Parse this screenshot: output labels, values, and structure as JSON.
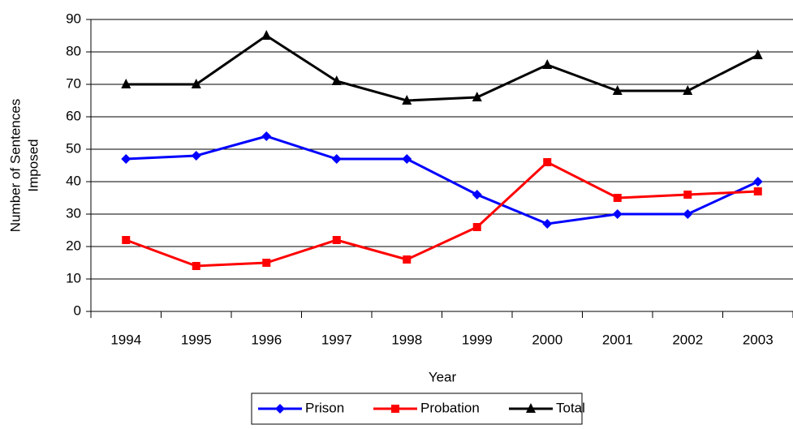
{
  "chart_data": {
    "type": "line",
    "xlabel": "Year",
    "ylabel_lines": [
      "Number of Sentences",
      "Imposed"
    ],
    "categories": [
      "1994",
      "1995",
      "1996",
      "1997",
      "1998",
      "1999",
      "2000",
      "2001",
      "2002",
      "2003"
    ],
    "series": [
      {
        "name": "Prison",
        "color": "#0000ff",
        "marker": "diamond",
        "values": [
          47,
          48,
          54,
          47,
          47,
          36,
          27,
          30,
          30,
          40
        ]
      },
      {
        "name": "Probation",
        "color": "#ff0000",
        "marker": "square",
        "values": [
          22,
          14,
          15,
          22,
          16,
          26,
          46,
          35,
          36,
          37
        ]
      },
      {
        "name": "Total",
        "color": "#000000",
        "marker": "triangle",
        "values": [
          70,
          70,
          85,
          71,
          65,
          66,
          76,
          68,
          68,
          79
        ]
      }
    ],
    "ylim": [
      0,
      90
    ],
    "yticks": [
      0,
      10,
      20,
      30,
      40,
      50,
      60,
      70,
      80,
      90
    ],
    "grid": true,
    "legend": "bottom"
  }
}
